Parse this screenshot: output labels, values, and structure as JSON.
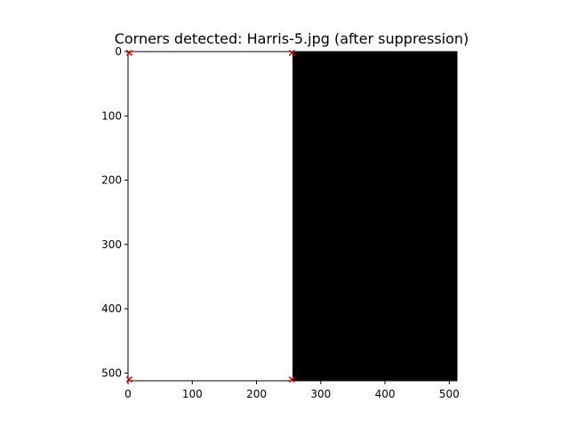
{
  "chart_data": {
    "type": "heatmap",
    "title": "Corners detected: Harris-5.jpg (after suppression)",
    "xlim": [
      0,
      512
    ],
    "ylim": [
      512,
      0
    ],
    "xticks": [
      0,
      100,
      200,
      300,
      400,
      500
    ],
    "yticks": [
      0,
      100,
      200,
      300,
      400,
      500
    ],
    "image_regions": [
      {
        "x0": 0,
        "x1": 256,
        "y0": 0,
        "y1": 512,
        "color": "#ffffff"
      },
      {
        "x0": 256,
        "x1": 512,
        "y0": 0,
        "y1": 512,
        "color": "#000000"
      }
    ],
    "corner_points": [
      {
        "x": 2,
        "y": 2
      },
      {
        "x": 255,
        "y": 2
      },
      {
        "x": 2,
        "y": 510
      },
      {
        "x": 255,
        "y": 510
      }
    ],
    "marker": "x",
    "marker_color": "#e00000",
    "grid": false
  }
}
